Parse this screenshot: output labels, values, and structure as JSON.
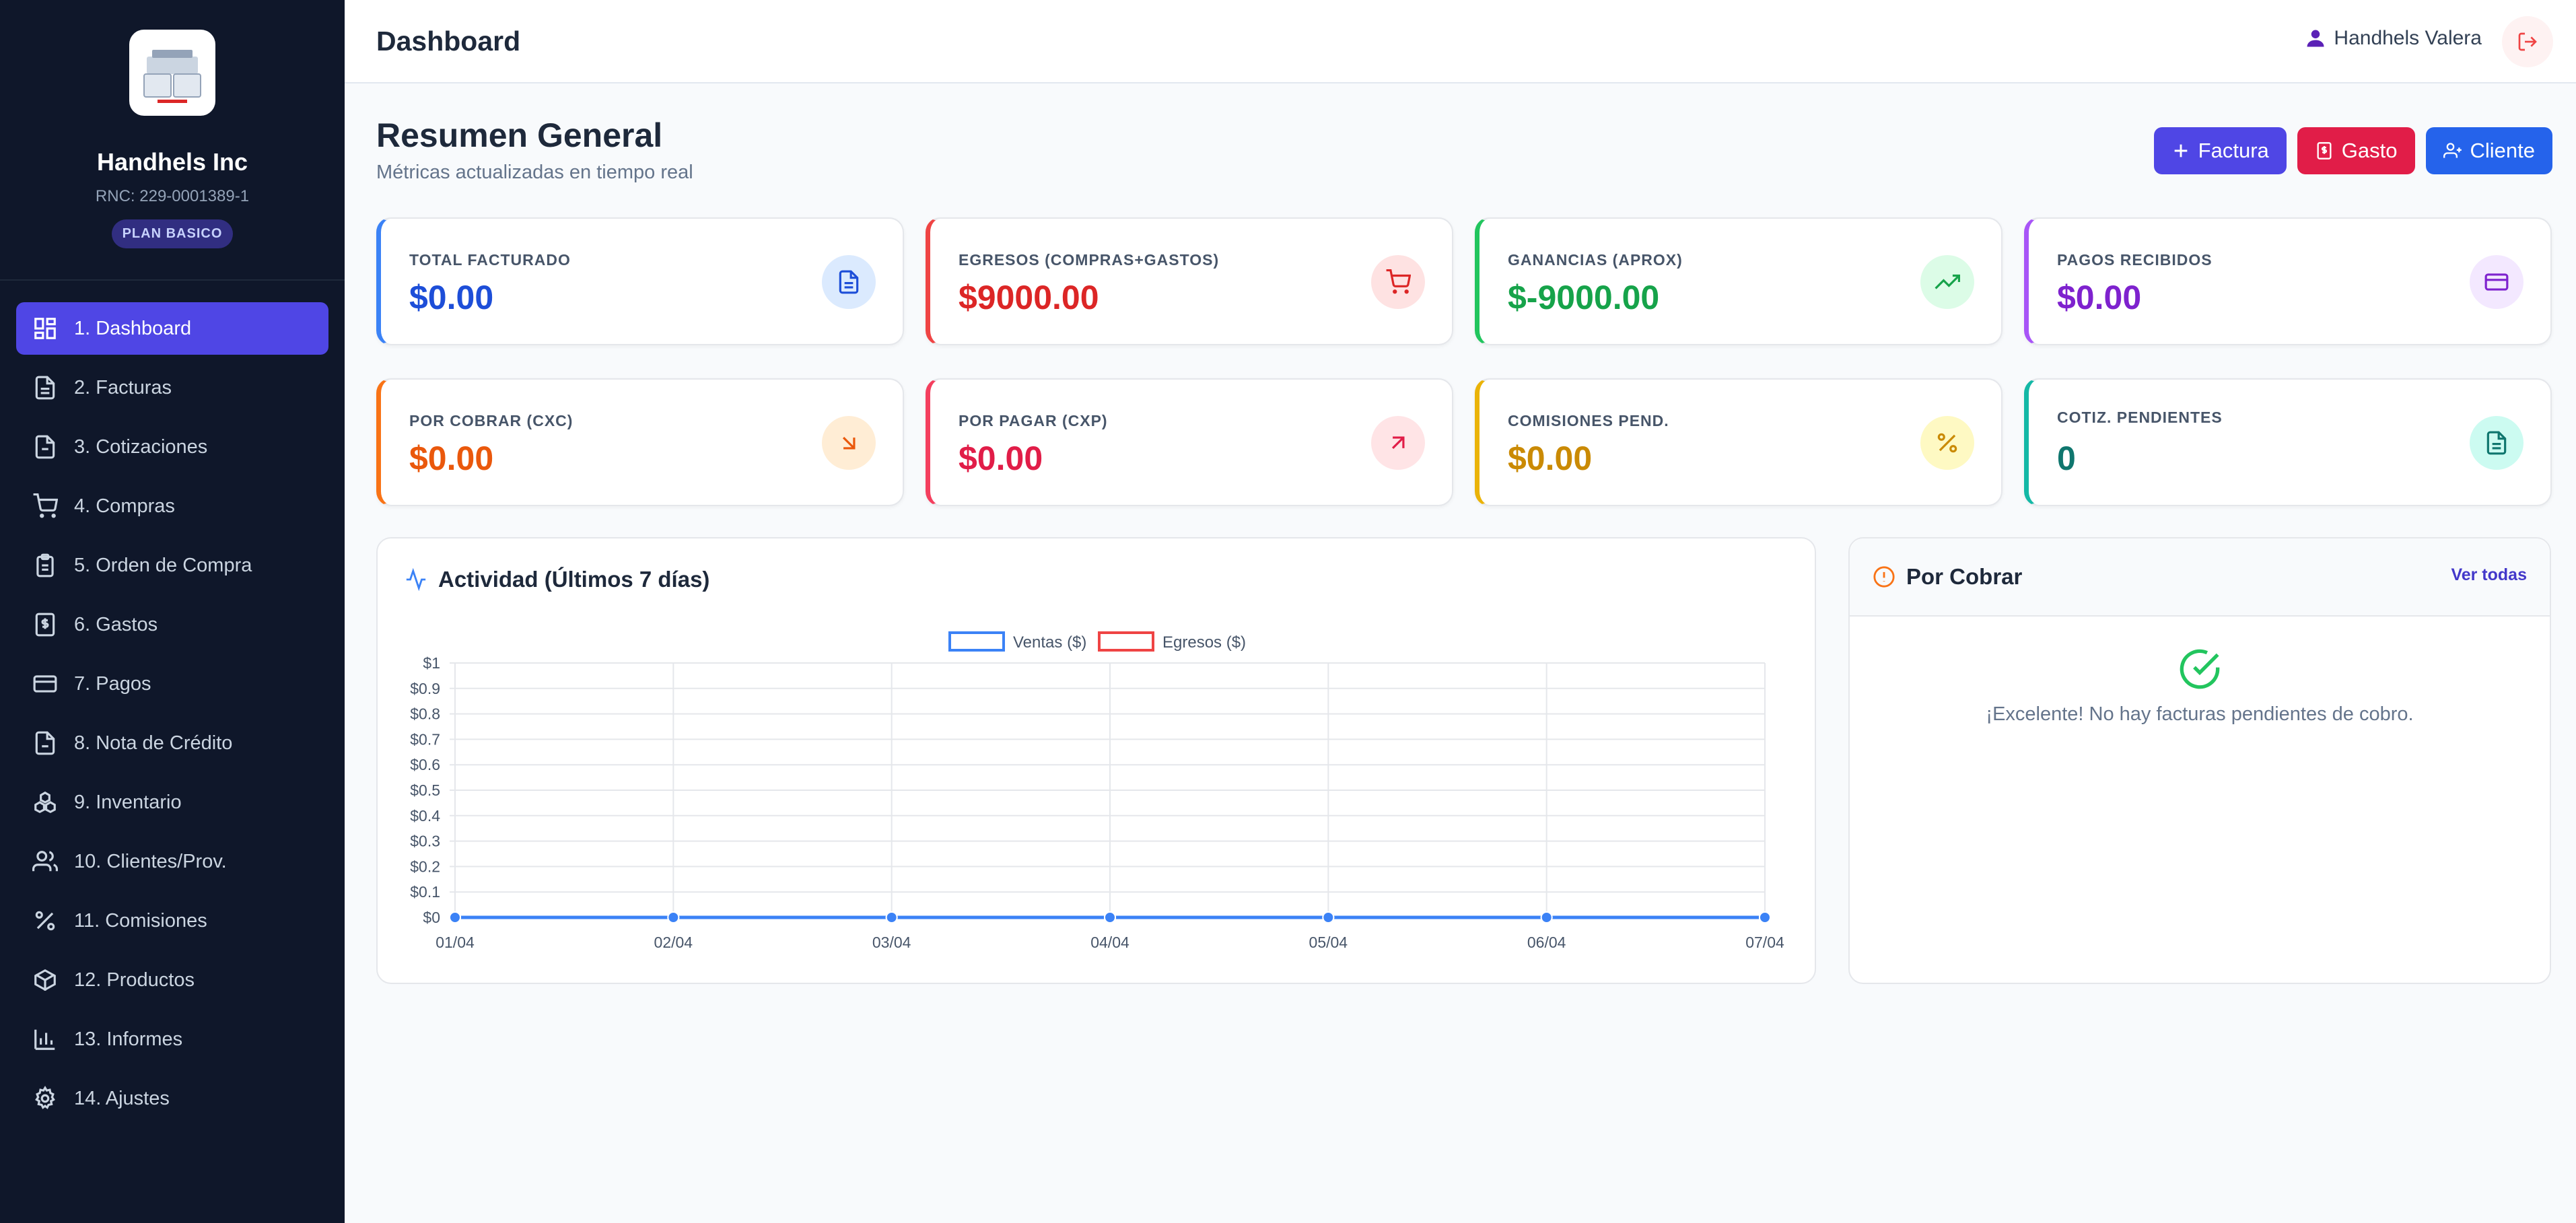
{
  "sidebar": {
    "company": "Handhels Inc",
    "rnc": "RNC: 229-0001389-1",
    "plan": "PLAN BASICO",
    "items": [
      {
        "label": "1. Dashboard",
        "icon": "dashboard-icon",
        "active": true
      },
      {
        "label": "2. Facturas",
        "icon": "file-icon"
      },
      {
        "label": "3. Cotizaciones",
        "icon": "file-text-icon"
      },
      {
        "label": "4. Compras",
        "icon": "cart-icon"
      },
      {
        "label": "5. Orden de Compra",
        "icon": "clipboard-icon"
      },
      {
        "label": "6. Gastos",
        "icon": "receipt-icon"
      },
      {
        "label": "7. Pagos",
        "icon": "credit-card-icon"
      },
      {
        "label": "8. Nota de Crédito",
        "icon": "file-minus-icon"
      },
      {
        "label": "9. Inventario",
        "icon": "boxes-icon"
      },
      {
        "label": "10. Clientes/Prov.",
        "icon": "users-icon"
      },
      {
        "label": "11. Comisiones",
        "icon": "percent-icon"
      },
      {
        "label": "12. Productos",
        "icon": "package-icon"
      },
      {
        "label": "13. Informes",
        "icon": "bar-chart-icon"
      },
      {
        "label": "14. Ajustes",
        "icon": "gear-icon"
      }
    ]
  },
  "header": {
    "title": "Dashboard",
    "user": "Handhels Valera"
  },
  "main": {
    "title": "Resumen General",
    "subtitle": "Métricas actualizadas en tiempo real",
    "actions": {
      "factura": "Factura",
      "gasto": "Gasto",
      "cliente": "Cliente"
    }
  },
  "cards": [
    {
      "label": "TOTAL FACTURADO",
      "value": "$0.00",
      "color": "#1d4ed8",
      "accent": "#3b82f6",
      "icon_bg": "#dbeafe",
      "icon": "file-icon"
    },
    {
      "label": "EGRESOS (COMPRAS+GASTOS)",
      "value": "$9000.00",
      "color": "#dc2626",
      "accent": "#ef4444",
      "icon_bg": "#fee2e2",
      "icon": "cart-icon"
    },
    {
      "label": "GANANCIAS (APROX)",
      "value": "$-9000.00",
      "color": "#16a34a",
      "accent": "#22c55e",
      "icon_bg": "#dcfce7",
      "icon": "trending-up-icon"
    },
    {
      "label": "PAGOS RECIBIDOS",
      "value": "$0.00",
      "color": "#7e22ce",
      "accent": "#a855f7",
      "icon_bg": "#f3e8ff",
      "icon": "credit-card-icon"
    },
    {
      "label": "POR COBRAR (CXC)",
      "value": "$0.00",
      "color": "#ea580c",
      "accent": "#f97316",
      "icon_bg": "#ffedd5",
      "icon": "arrow-down-right-icon"
    },
    {
      "label": "POR PAGAR (CXP)",
      "value": "$0.00",
      "color": "#e11d48",
      "accent": "#f43f5e",
      "icon_bg": "#ffe4e6",
      "icon": "arrow-up-right-icon"
    },
    {
      "label": "COMISIONES PEND.",
      "value": "$0.00",
      "color": "#ca8a04",
      "accent": "#eab308",
      "icon_bg": "#fef9c3",
      "icon": "percent-icon"
    },
    {
      "label": "COTIZ. PENDIENTES",
      "value": "0",
      "color": "#0f766e",
      "accent": "#14b8a6",
      "icon_bg": "#ccfbf1",
      "icon": "file-text-icon"
    }
  ],
  "activity": {
    "title": "Actividad (Últimos 7 días)"
  },
  "chart_data": {
    "type": "line",
    "categories": [
      "01/04",
      "02/04",
      "03/04",
      "04/04",
      "05/04",
      "06/04",
      "07/04"
    ],
    "series": [
      {
        "name": "Ventas ($)",
        "values": [
          0,
          0,
          0,
          0,
          0,
          0,
          0
        ],
        "color": "#3b82f6"
      },
      {
        "name": "Egresos ($)",
        "values": [
          0,
          0,
          0,
          0,
          0,
          0,
          0
        ],
        "color": "#ef4444"
      }
    ],
    "yticks": [
      "$0",
      "$0.1",
      "$0.2",
      "$0.3",
      "$0.4",
      "$0.5",
      "$0.6",
      "$0.7",
      "$0.8",
      "$0.9",
      "$1"
    ],
    "ylim": [
      0,
      1
    ],
    "grid": true,
    "legend": "top-center"
  },
  "por_cobrar": {
    "title": "Por Cobrar",
    "link": "Ver todas",
    "empty": "¡Excelente! No hay facturas pendientes de cobro."
  }
}
